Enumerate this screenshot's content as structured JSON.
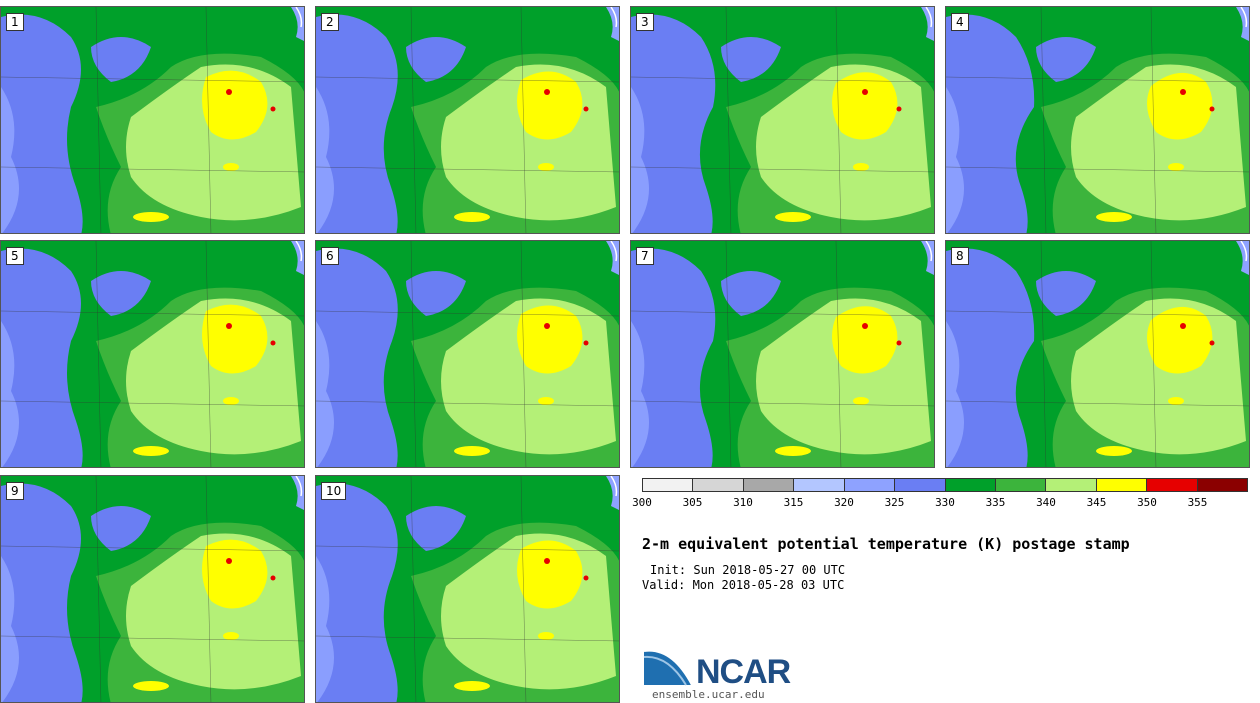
{
  "panels": [
    {
      "label": "1"
    },
    {
      "label": "2"
    },
    {
      "label": "3"
    },
    {
      "label": "4"
    },
    {
      "label": "5"
    },
    {
      "label": "6"
    },
    {
      "label": "7"
    },
    {
      "label": "8"
    },
    {
      "label": "9"
    },
    {
      "label": "10"
    }
  ],
  "legend": {
    "ticks": [
      "300",
      "305",
      "310",
      "315",
      "320",
      "325",
      "330",
      "335",
      "340",
      "345",
      "350",
      "355"
    ],
    "colors": [
      "#f2f2f2",
      "#d6d6d6",
      "#a8a8a8",
      "#b3c6ff",
      "#8ea2ff",
      "#6a7ef3",
      "#00a02a",
      "#3cb43c",
      "#b4f077",
      "#ffff00",
      "#e60000",
      "#8b0000"
    ]
  },
  "title": "2-m equivalent potential temperature (K) postage stamp",
  "init": "Init: Sun 2018-05-27 00 UTC",
  "valid": "Valid: Mon 2018-05-28 03 UTC",
  "logo": {
    "name": "NCAR",
    "url": "ensemble.ucar.edu"
  }
}
